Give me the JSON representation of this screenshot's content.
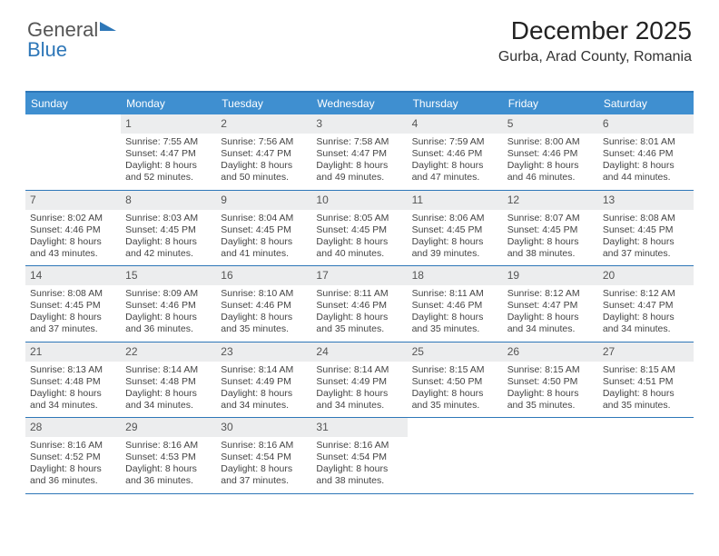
{
  "brand": {
    "word1": "General",
    "word2": "Blue"
  },
  "header": {
    "month": "December 2025",
    "location": "Gurba, Arad County, Romania"
  },
  "dow": [
    "Sunday",
    "Monday",
    "Tuesday",
    "Wednesday",
    "Thursday",
    "Friday",
    "Saturday"
  ],
  "colors": {
    "header_bar": "#3f8fd0",
    "border": "#2e77b8",
    "daynum_bg": "#ecedee"
  },
  "weeks": [
    [
      {
        "n": "",
        "sr": "",
        "ss": "",
        "dl": ""
      },
      {
        "n": "1",
        "sr": "Sunrise: 7:55 AM",
        "ss": "Sunset: 4:47 PM",
        "dl": "Daylight: 8 hours and 52 minutes."
      },
      {
        "n": "2",
        "sr": "Sunrise: 7:56 AM",
        "ss": "Sunset: 4:47 PM",
        "dl": "Daylight: 8 hours and 50 minutes."
      },
      {
        "n": "3",
        "sr": "Sunrise: 7:58 AM",
        "ss": "Sunset: 4:47 PM",
        "dl": "Daylight: 8 hours and 49 minutes."
      },
      {
        "n": "4",
        "sr": "Sunrise: 7:59 AM",
        "ss": "Sunset: 4:46 PM",
        "dl": "Daylight: 8 hours and 47 minutes."
      },
      {
        "n": "5",
        "sr": "Sunrise: 8:00 AM",
        "ss": "Sunset: 4:46 PM",
        "dl": "Daylight: 8 hours and 46 minutes."
      },
      {
        "n": "6",
        "sr": "Sunrise: 8:01 AM",
        "ss": "Sunset: 4:46 PM",
        "dl": "Daylight: 8 hours and 44 minutes."
      }
    ],
    [
      {
        "n": "7",
        "sr": "Sunrise: 8:02 AM",
        "ss": "Sunset: 4:46 PM",
        "dl": "Daylight: 8 hours and 43 minutes."
      },
      {
        "n": "8",
        "sr": "Sunrise: 8:03 AM",
        "ss": "Sunset: 4:45 PM",
        "dl": "Daylight: 8 hours and 42 minutes."
      },
      {
        "n": "9",
        "sr": "Sunrise: 8:04 AM",
        "ss": "Sunset: 4:45 PM",
        "dl": "Daylight: 8 hours and 41 minutes."
      },
      {
        "n": "10",
        "sr": "Sunrise: 8:05 AM",
        "ss": "Sunset: 4:45 PM",
        "dl": "Daylight: 8 hours and 40 minutes."
      },
      {
        "n": "11",
        "sr": "Sunrise: 8:06 AM",
        "ss": "Sunset: 4:45 PM",
        "dl": "Daylight: 8 hours and 39 minutes."
      },
      {
        "n": "12",
        "sr": "Sunrise: 8:07 AM",
        "ss": "Sunset: 4:45 PM",
        "dl": "Daylight: 8 hours and 38 minutes."
      },
      {
        "n": "13",
        "sr": "Sunrise: 8:08 AM",
        "ss": "Sunset: 4:45 PM",
        "dl": "Daylight: 8 hours and 37 minutes."
      }
    ],
    [
      {
        "n": "14",
        "sr": "Sunrise: 8:08 AM",
        "ss": "Sunset: 4:45 PM",
        "dl": "Daylight: 8 hours and 37 minutes."
      },
      {
        "n": "15",
        "sr": "Sunrise: 8:09 AM",
        "ss": "Sunset: 4:46 PM",
        "dl": "Daylight: 8 hours and 36 minutes."
      },
      {
        "n": "16",
        "sr": "Sunrise: 8:10 AM",
        "ss": "Sunset: 4:46 PM",
        "dl": "Daylight: 8 hours and 35 minutes."
      },
      {
        "n": "17",
        "sr": "Sunrise: 8:11 AM",
        "ss": "Sunset: 4:46 PM",
        "dl": "Daylight: 8 hours and 35 minutes."
      },
      {
        "n": "18",
        "sr": "Sunrise: 8:11 AM",
        "ss": "Sunset: 4:46 PM",
        "dl": "Daylight: 8 hours and 35 minutes."
      },
      {
        "n": "19",
        "sr": "Sunrise: 8:12 AM",
        "ss": "Sunset: 4:47 PM",
        "dl": "Daylight: 8 hours and 34 minutes."
      },
      {
        "n": "20",
        "sr": "Sunrise: 8:12 AM",
        "ss": "Sunset: 4:47 PM",
        "dl": "Daylight: 8 hours and 34 minutes."
      }
    ],
    [
      {
        "n": "21",
        "sr": "Sunrise: 8:13 AM",
        "ss": "Sunset: 4:48 PM",
        "dl": "Daylight: 8 hours and 34 minutes."
      },
      {
        "n": "22",
        "sr": "Sunrise: 8:14 AM",
        "ss": "Sunset: 4:48 PM",
        "dl": "Daylight: 8 hours and 34 minutes."
      },
      {
        "n": "23",
        "sr": "Sunrise: 8:14 AM",
        "ss": "Sunset: 4:49 PM",
        "dl": "Daylight: 8 hours and 34 minutes."
      },
      {
        "n": "24",
        "sr": "Sunrise: 8:14 AM",
        "ss": "Sunset: 4:49 PM",
        "dl": "Daylight: 8 hours and 34 minutes."
      },
      {
        "n": "25",
        "sr": "Sunrise: 8:15 AM",
        "ss": "Sunset: 4:50 PM",
        "dl": "Daylight: 8 hours and 35 minutes."
      },
      {
        "n": "26",
        "sr": "Sunrise: 8:15 AM",
        "ss": "Sunset: 4:50 PM",
        "dl": "Daylight: 8 hours and 35 minutes."
      },
      {
        "n": "27",
        "sr": "Sunrise: 8:15 AM",
        "ss": "Sunset: 4:51 PM",
        "dl": "Daylight: 8 hours and 35 minutes."
      }
    ],
    [
      {
        "n": "28",
        "sr": "Sunrise: 8:16 AM",
        "ss": "Sunset: 4:52 PM",
        "dl": "Daylight: 8 hours and 36 minutes."
      },
      {
        "n": "29",
        "sr": "Sunrise: 8:16 AM",
        "ss": "Sunset: 4:53 PM",
        "dl": "Daylight: 8 hours and 36 minutes."
      },
      {
        "n": "30",
        "sr": "Sunrise: 8:16 AM",
        "ss": "Sunset: 4:54 PM",
        "dl": "Daylight: 8 hours and 37 minutes."
      },
      {
        "n": "31",
        "sr": "Sunrise: 8:16 AM",
        "ss": "Sunset: 4:54 PM",
        "dl": "Daylight: 8 hours and 38 minutes."
      },
      {
        "n": "",
        "sr": "",
        "ss": "",
        "dl": ""
      },
      {
        "n": "",
        "sr": "",
        "ss": "",
        "dl": ""
      },
      {
        "n": "",
        "sr": "",
        "ss": "",
        "dl": ""
      }
    ]
  ]
}
